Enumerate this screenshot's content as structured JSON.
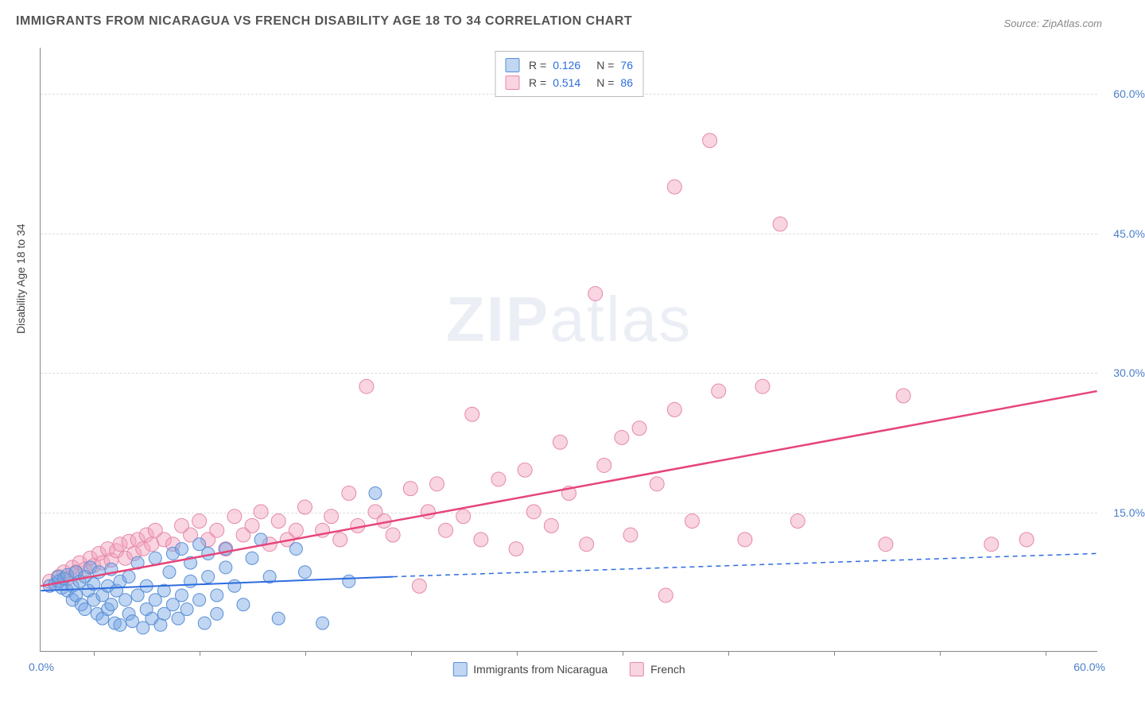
{
  "title": "IMMIGRANTS FROM NICARAGUA VS FRENCH DISABILITY AGE 18 TO 34 CORRELATION CHART",
  "source": "Source: ZipAtlas.com",
  "y_axis_label": "Disability Age 18 to 34",
  "watermark": {
    "bold": "ZIP",
    "light": "atlas"
  },
  "axes": {
    "xlim": [
      0,
      60
    ],
    "ylim": [
      0,
      65
    ],
    "x_origin_label": "0.0%",
    "x_max_label": "60.0%",
    "y_ticks": [
      {
        "value": 15,
        "label": "15.0%"
      },
      {
        "value": 30,
        "label": "30.0%"
      },
      {
        "value": 45,
        "label": "45.0%"
      },
      {
        "value": 60,
        "label": "60.0%"
      }
    ],
    "x_tick_positions": [
      3,
      9,
      15,
      21,
      27,
      33,
      39,
      45,
      51,
      57
    ],
    "grid_color": "#dddddd"
  },
  "series": {
    "blue": {
      "label": "Immigrants from Nicaragua",
      "fill": "rgba(115,163,226,0.45)",
      "stroke": "#5a8fd6",
      "r_value": "0.126",
      "n_value": "76",
      "marker_radius": 8,
      "line_color": "#2d6cdf",
      "line_width": 2,
      "dash_color": "#2d6cdf",
      "solid_line": {
        "x1": 0,
        "y1": 6.5,
        "x2": 20,
        "y2": 8.0
      },
      "dash_line": {
        "x1": 20,
        "y1": 8.0,
        "x2": 60,
        "y2": 10.5
      },
      "points": [
        [
          0.5,
          7.0
        ],
        [
          0.8,
          7.2
        ],
        [
          1.0,
          7.5
        ],
        [
          1.0,
          8.0
        ],
        [
          1.2,
          6.8
        ],
        [
          1.3,
          7.8
        ],
        [
          1.5,
          6.5
        ],
        [
          1.5,
          8.2
        ],
        [
          1.8,
          7.0
        ],
        [
          1.8,
          5.5
        ],
        [
          2.0,
          8.5
        ],
        [
          2.0,
          6.0
        ],
        [
          2.2,
          7.5
        ],
        [
          2.3,
          5.0
        ],
        [
          2.5,
          8.0
        ],
        [
          2.5,
          4.5
        ],
        [
          2.7,
          6.5
        ],
        [
          2.8,
          9.0
        ],
        [
          3.0,
          5.5
        ],
        [
          3.0,
          7.2
        ],
        [
          3.2,
          4.0
        ],
        [
          3.3,
          8.5
        ],
        [
          3.5,
          6.0
        ],
        [
          3.5,
          3.5
        ],
        [
          3.8,
          7.0
        ],
        [
          3.8,
          4.5
        ],
        [
          4.0,
          8.8
        ],
        [
          4.0,
          5.0
        ],
        [
          4.2,
          3.0
        ],
        [
          4.3,
          6.5
        ],
        [
          4.5,
          7.5
        ],
        [
          4.5,
          2.8
        ],
        [
          4.8,
          5.5
        ],
        [
          5.0,
          4.0
        ],
        [
          5.0,
          8.0
        ],
        [
          5.2,
          3.2
        ],
        [
          5.5,
          6.0
        ],
        [
          5.5,
          9.5
        ],
        [
          5.8,
          2.5
        ],
        [
          6.0,
          4.5
        ],
        [
          6.0,
          7.0
        ],
        [
          6.3,
          3.5
        ],
        [
          6.5,
          5.5
        ],
        [
          6.5,
          10.0
        ],
        [
          6.8,
          2.8
        ],
        [
          7.0,
          6.5
        ],
        [
          7.0,
          4.0
        ],
        [
          7.3,
          8.5
        ],
        [
          7.5,
          5.0
        ],
        [
          7.5,
          10.5
        ],
        [
          7.8,
          3.5
        ],
        [
          8.0,
          6.0
        ],
        [
          8.0,
          11.0
        ],
        [
          8.3,
          4.5
        ],
        [
          8.5,
          7.5
        ],
        [
          8.5,
          9.5
        ],
        [
          9.0,
          5.5
        ],
        [
          9.0,
          11.5
        ],
        [
          9.3,
          3.0
        ],
        [
          9.5,
          8.0
        ],
        [
          9.5,
          10.5
        ],
        [
          10.0,
          6.0
        ],
        [
          10.0,
          4.0
        ],
        [
          10.5,
          9.0
        ],
        [
          10.5,
          11.0
        ],
        [
          11.0,
          7.0
        ],
        [
          11.5,
          5.0
        ],
        [
          12.0,
          10.0
        ],
        [
          12.5,
          12.0
        ],
        [
          13.0,
          8.0
        ],
        [
          13.5,
          3.5
        ],
        [
          14.5,
          11.0
        ],
        [
          15.0,
          8.5
        ],
        [
          16.0,
          3.0
        ],
        [
          17.5,
          7.5
        ],
        [
          19.0,
          17.0
        ]
      ]
    },
    "pink": {
      "label": "French",
      "fill": "rgba(242,160,189,0.45)",
      "stroke": "#e589aa",
      "r_value": "0.514",
      "n_value": "86",
      "marker_radius": 9,
      "line_color": "#e6457a",
      "line_width": 2.5,
      "solid_line": {
        "x1": 0,
        "y1": 7.0,
        "x2": 60,
        "y2": 28.0
      },
      "points": [
        [
          0.5,
          7.5
        ],
        [
          1.0,
          8.0
        ],
        [
          1.3,
          8.5
        ],
        [
          1.5,
          7.8
        ],
        [
          1.8,
          9.0
        ],
        [
          2.0,
          8.5
        ],
        [
          2.2,
          9.5
        ],
        [
          2.5,
          8.8
        ],
        [
          2.8,
          10.0
        ],
        [
          3.0,
          9.2
        ],
        [
          3.3,
          10.5
        ],
        [
          3.5,
          9.5
        ],
        [
          3.8,
          11.0
        ],
        [
          4.0,
          9.8
        ],
        [
          4.3,
          10.8
        ],
        [
          4.5,
          11.5
        ],
        [
          4.8,
          10.0
        ],
        [
          5.0,
          11.8
        ],
        [
          5.3,
          10.5
        ],
        [
          5.5,
          12.0
        ],
        [
          5.8,
          11.0
        ],
        [
          6.0,
          12.5
        ],
        [
          6.3,
          11.5
        ],
        [
          6.5,
          13.0
        ],
        [
          7.0,
          12.0
        ],
        [
          7.5,
          11.5
        ],
        [
          8.0,
          13.5
        ],
        [
          8.5,
          12.5
        ],
        [
          9.0,
          14.0
        ],
        [
          9.5,
          12.0
        ],
        [
          10.0,
          13.0
        ],
        [
          10.5,
          11.0
        ],
        [
          11.0,
          14.5
        ],
        [
          11.5,
          12.5
        ],
        [
          12.0,
          13.5
        ],
        [
          12.5,
          15.0
        ],
        [
          13.0,
          11.5
        ],
        [
          13.5,
          14.0
        ],
        [
          14.0,
          12.0
        ],
        [
          14.5,
          13.0
        ],
        [
          15.0,
          15.5
        ],
        [
          16.0,
          13.0
        ],
        [
          16.5,
          14.5
        ],
        [
          17.0,
          12.0
        ],
        [
          17.5,
          17.0
        ],
        [
          18.0,
          13.5
        ],
        [
          18.5,
          28.5
        ],
        [
          19.0,
          15.0
        ],
        [
          19.5,
          14.0
        ],
        [
          20.0,
          12.5
        ],
        [
          21.0,
          17.5
        ],
        [
          21.5,
          7.0
        ],
        [
          22.0,
          15.0
        ],
        [
          22.5,
          18.0
        ],
        [
          23.0,
          13.0
        ],
        [
          24.0,
          14.5
        ],
        [
          24.5,
          25.5
        ],
        [
          25.0,
          12.0
        ],
        [
          26.0,
          18.5
        ],
        [
          27.0,
          11.0
        ],
        [
          27.5,
          19.5
        ],
        [
          28.0,
          15.0
        ],
        [
          29.0,
          13.5
        ],
        [
          29.5,
          22.5
        ],
        [
          30.0,
          17.0
        ],
        [
          31.0,
          11.5
        ],
        [
          31.5,
          38.5
        ],
        [
          32.0,
          20.0
        ],
        [
          33.0,
          23.0
        ],
        [
          33.5,
          12.5
        ],
        [
          34.0,
          24.0
        ],
        [
          35.0,
          18.0
        ],
        [
          35.5,
          6.0
        ],
        [
          36.0,
          50.0
        ],
        [
          36.0,
          26.0
        ],
        [
          37.0,
          14.0
        ],
        [
          38.0,
          55.0
        ],
        [
          38.5,
          28.0
        ],
        [
          40.0,
          12.0
        ],
        [
          41.0,
          28.5
        ],
        [
          42.0,
          46.0
        ],
        [
          43.0,
          14.0
        ],
        [
          48.0,
          11.5
        ],
        [
          49.0,
          27.5
        ],
        [
          54.0,
          11.5
        ],
        [
          56.0,
          12.0
        ]
      ]
    }
  },
  "colors": {
    "axis_text": "#4a7fc9",
    "title_text": "#555555",
    "source_text": "#888888",
    "background": "#ffffff"
  },
  "legend_top": {
    "r_label": "R =",
    "n_label": "N ="
  }
}
